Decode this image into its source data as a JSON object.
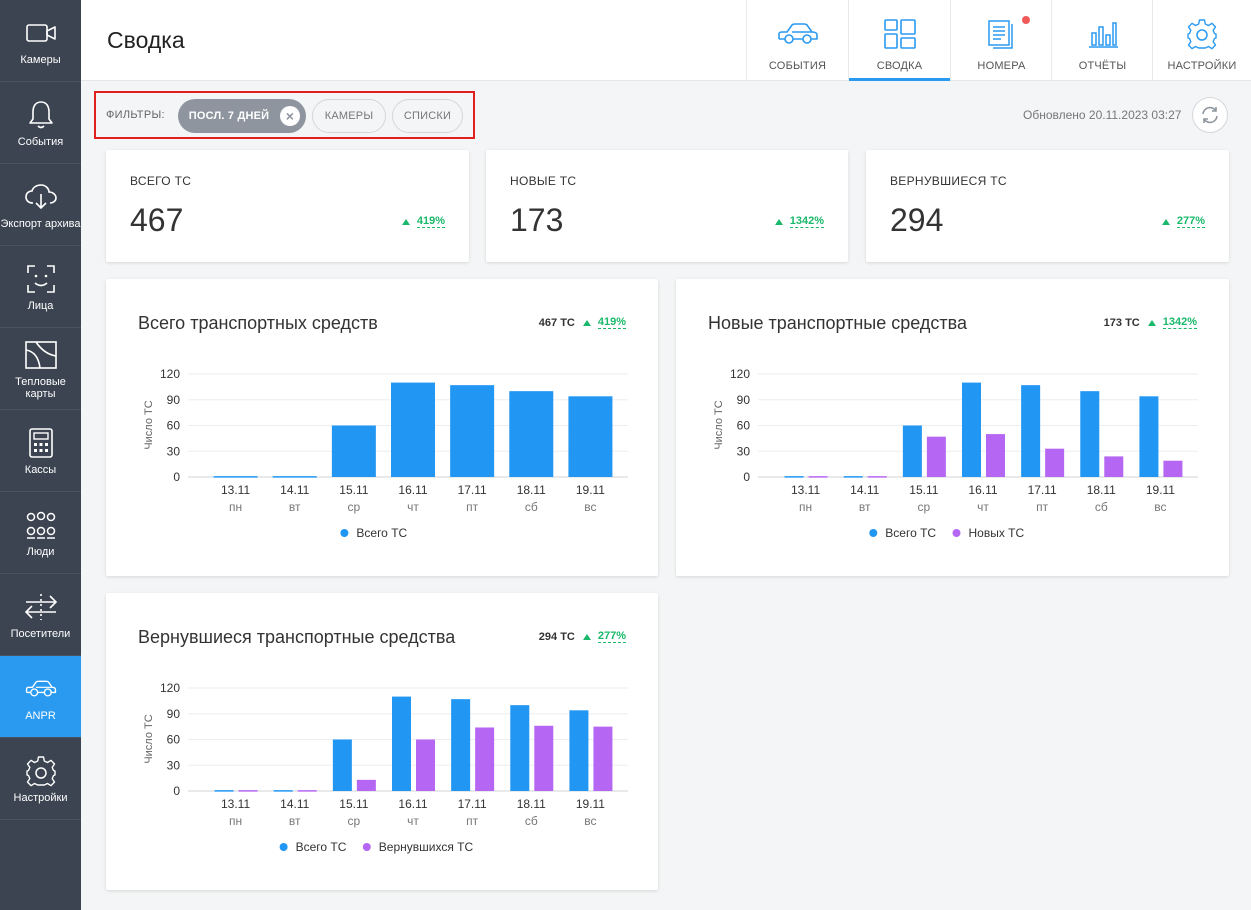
{
  "sidebar": {
    "items": [
      {
        "label": "Камеры",
        "icon": "camera-icon",
        "active": false
      },
      {
        "label": "События",
        "icon": "bell-icon",
        "active": false
      },
      {
        "label": "Экспорт архива",
        "icon": "cloud-download-icon",
        "active": false
      },
      {
        "label": "Лица",
        "icon": "face-scan-icon",
        "active": false
      },
      {
        "label": "Тепловые карты",
        "icon": "heatmap-icon",
        "active": false
      },
      {
        "label": "Кассы",
        "icon": "cash-register-icon",
        "active": false
      },
      {
        "label": "Люди",
        "icon": "people-icon",
        "active": false
      },
      {
        "label": "Посетители",
        "icon": "visitors-arrows-icon",
        "active": false
      },
      {
        "label": "ANPR",
        "icon": "car-icon",
        "active": true
      },
      {
        "label": "Настройки",
        "icon": "gear-icon",
        "active": false
      }
    ]
  },
  "header": {
    "title": "Сводка",
    "tabs": [
      {
        "label": "СОБЫТИЯ",
        "icon": "car-icon",
        "active": false
      },
      {
        "label": "СВОДКА",
        "icon": "dashboard-grid-icon",
        "active": true
      },
      {
        "label": "НОМЕРА",
        "icon": "documents-icon",
        "active": false,
        "notification": true
      },
      {
        "label": "ОТЧЁТЫ",
        "icon": "bar-chart-icon",
        "active": false
      },
      {
        "label": "НАСТРОЙКИ",
        "icon": "gear-icon",
        "active": false
      }
    ]
  },
  "filters": {
    "label": "ФИЛЬТРЫ:",
    "chips": [
      {
        "label": "ПОСЛ. 7 ДНЕЙ",
        "selected": true
      },
      {
        "label": "КАМЕРЫ",
        "selected": false
      },
      {
        "label": "СПИСКИ",
        "selected": false
      }
    ],
    "updated": "Обновлено 20.11.2023 03:27"
  },
  "stats": [
    {
      "label": "ВСЕГО ТС",
      "value": "467",
      "delta": "419%"
    },
    {
      "label": "НОВЫЕ ТС",
      "value": "173",
      "delta": "1342%"
    },
    {
      "label": "ВЕРНУВШИЕСЯ ТС",
      "value": "294",
      "delta": "277%"
    }
  ],
  "colors": {
    "accent": "#2a9af0",
    "primary_bar": "#2196f3",
    "secondary_bar": "#b566f2",
    "positive": "#19b86a",
    "alert": "#e0201f"
  },
  "chart_cards": [
    {
      "title": "Всего транспортных средств",
      "total": "467 ТС",
      "delta": "419%"
    },
    {
      "title": "Новые транспортные средства",
      "total": "173 ТС",
      "delta": "1342%"
    },
    {
      "title": "Вернувшиеся транспортные средства",
      "total": "294 ТС",
      "delta": "277%"
    }
  ],
  "chart_data": [
    {
      "type": "bar",
      "title": "Всего транспортных средств",
      "ylabel": "Число ТС",
      "ylim": [
        0,
        120
      ],
      "yticks": [
        0,
        30,
        60,
        90,
        120
      ],
      "categories": [
        "13.11",
        "14.11",
        "15.11",
        "16.11",
        "17.11",
        "18.11",
        "19.11"
      ],
      "subcategories": [
        "пн",
        "вт",
        "ср",
        "чт",
        "пт",
        "сб",
        "вс"
      ],
      "series": [
        {
          "name": "Всего ТС",
          "values": [
            1,
            1,
            60,
            110,
            107,
            100,
            94
          ]
        }
      ],
      "legend": "bottom"
    },
    {
      "type": "bar",
      "title": "Новые транспортные средства",
      "ylabel": "Число ТС",
      "ylim": [
        0,
        120
      ],
      "yticks": [
        0,
        30,
        60,
        90,
        120
      ],
      "categories": [
        "13.11",
        "14.11",
        "15.11",
        "16.11",
        "17.11",
        "18.11",
        "19.11"
      ],
      "subcategories": [
        "пн",
        "вт",
        "ср",
        "чт",
        "пт",
        "сб",
        "вс"
      ],
      "series": [
        {
          "name": "Всего ТС",
          "values": [
            1,
            1,
            60,
            110,
            107,
            100,
            94
          ]
        },
        {
          "name": "Новых ТС",
          "values": [
            1,
            1,
            47,
            50,
            33,
            24,
            19
          ]
        }
      ],
      "legend": "bottom"
    },
    {
      "type": "bar",
      "title": "Вернувшиеся транспортные средства",
      "ylabel": "Число ТС",
      "ylim": [
        0,
        120
      ],
      "yticks": [
        0,
        30,
        60,
        90,
        120
      ],
      "categories": [
        "13.11",
        "14.11",
        "15.11",
        "16.11",
        "17.11",
        "18.11",
        "19.11"
      ],
      "subcategories": [
        "пн",
        "вт",
        "ср",
        "чт",
        "пт",
        "сб",
        "вс"
      ],
      "series": [
        {
          "name": "Всего ТС",
          "values": [
            1,
            1,
            60,
            110,
            107,
            100,
            94
          ]
        },
        {
          "name": "Вернувшихся ТС",
          "values": [
            1,
            1,
            13,
            60,
            74,
            76,
            75
          ]
        }
      ],
      "legend": "bottom"
    }
  ]
}
